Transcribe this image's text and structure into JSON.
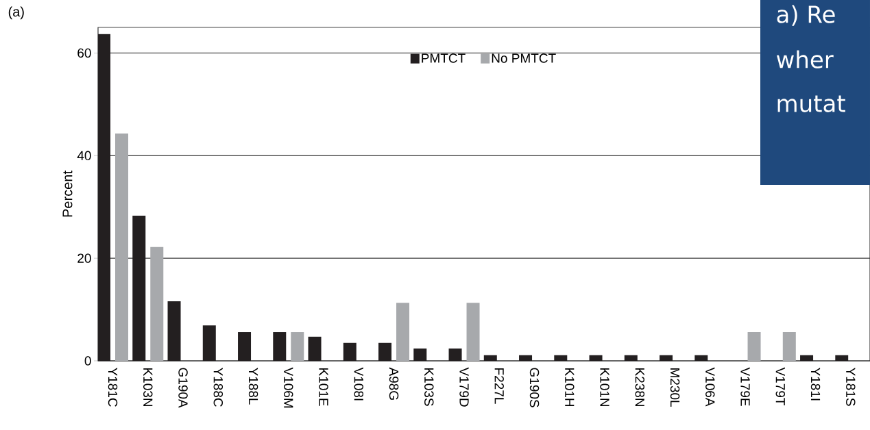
{
  "chart_data": {
    "type": "bar",
    "title": "(a)",
    "ylabel": "Percent",
    "categories": [
      "Y181C",
      "K103N",
      "G190A",
      "Y188C",
      "Y188L",
      "V106M",
      "K101E",
      "V108I",
      "A98G",
      "K103S",
      "V179D",
      "F227L",
      "G190S",
      "K101H",
      "K101N",
      "K238N",
      "M230L",
      "V106A",
      "V179E",
      "V179T",
      "Y181I",
      "Y181S"
    ],
    "series": [
      {
        "name": "PMTCT",
        "color": "#231f20",
        "values": [
          63.7,
          28.3,
          11.6,
          6.9,
          5.6,
          5.6,
          4.7,
          3.5,
          3.5,
          2.4,
          2.4,
          1.1,
          1.1,
          1.1,
          1.1,
          1.1,
          1.1,
          1.1,
          null,
          null,
          1.1,
          1.1
        ]
      },
      {
        "name": "No PMTCT",
        "color": "#a7a9ac",
        "values": [
          44.3,
          22.2,
          null,
          null,
          null,
          5.6,
          null,
          null,
          11.3,
          null,
          11.3,
          null,
          null,
          null,
          null,
          null,
          null,
          null,
          5.6,
          5.6,
          null,
          null
        ]
      }
    ],
    "ylim": [
      0,
      65
    ],
    "yticks": [
      0,
      20,
      40,
      60
    ],
    "grid": "y",
    "legend": "top",
    "annotations": [
      "a) Re",
      "wher",
      "mutat"
    ]
  }
}
